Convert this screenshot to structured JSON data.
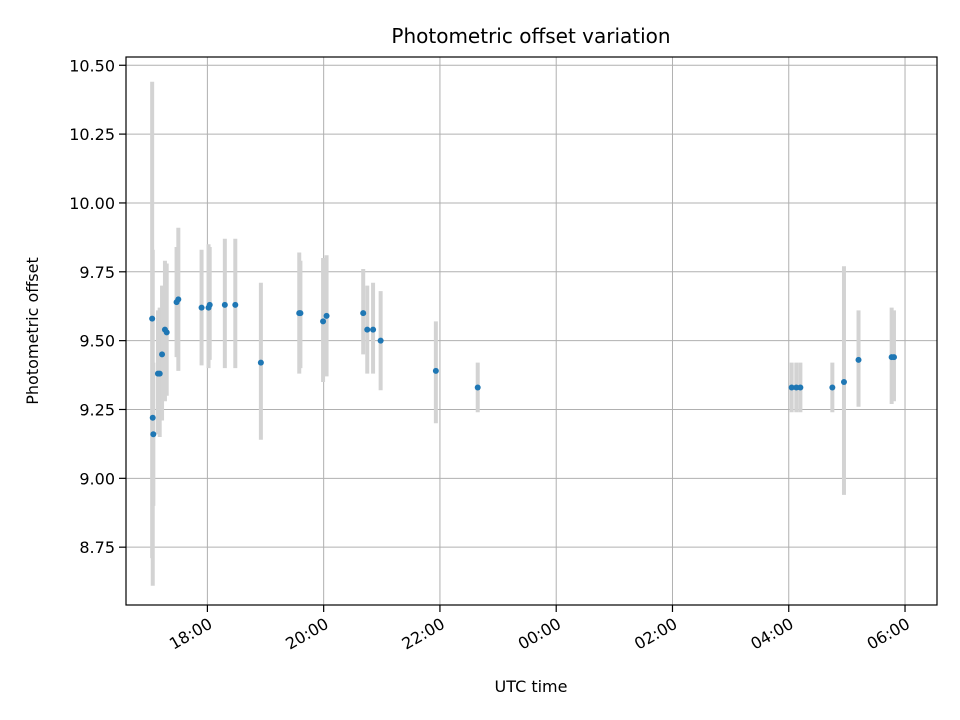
{
  "chart_data": {
    "type": "scatter",
    "title": "Photometric offset variation",
    "xlabel": "UTC time",
    "ylabel": "Photometric offset",
    "grid": true,
    "x_unit": "hours since 00:00 of first day (values > 24 are next day)",
    "xlim": [
      16.6,
      30.55
    ],
    "ylim": [
      8.54,
      10.53
    ],
    "x_ticks": [
      {
        "value": 18,
        "label": "18:00"
      },
      {
        "value": 20,
        "label": "20:00"
      },
      {
        "value": 22,
        "label": "22:00"
      },
      {
        "value": 24,
        "label": "00:00"
      },
      {
        "value": 26,
        "label": "02:00"
      },
      {
        "value": 28,
        "label": "04:00"
      },
      {
        "value": 30,
        "label": "06:00"
      }
    ],
    "y_ticks": [
      {
        "value": 8.75,
        "label": "8.75"
      },
      {
        "value": 9.0,
        "label": "9.00"
      },
      {
        "value": 9.25,
        "label": "9.25"
      },
      {
        "value": 9.5,
        "label": "9.50"
      },
      {
        "value": 9.75,
        "label": "9.75"
      },
      {
        "value": 10.0,
        "label": "10.00"
      },
      {
        "value": 10.25,
        "label": "10.25"
      },
      {
        "value": 10.5,
        "label": "10.50"
      }
    ],
    "marker_color": "#1f77b4",
    "errorbar_color": "#d3d3d3",
    "points": [
      {
        "x": 17.05,
        "y": 9.58,
        "ylo": 8.71,
        "yhi": 10.44
      },
      {
        "x": 17.06,
        "y": 9.22,
        "ylo": 8.61,
        "yhi": 9.83
      },
      {
        "x": 17.07,
        "y": 9.16,
        "ylo": 8.9,
        "yhi": 9.42
      },
      {
        "x": 17.15,
        "y": 9.38,
        "ylo": 9.16,
        "yhi": 9.61
      },
      {
        "x": 17.18,
        "y": 9.38,
        "ylo": 9.15,
        "yhi": 9.62
      },
      {
        "x": 17.22,
        "y": 9.45,
        "ylo": 9.21,
        "yhi": 9.7
      },
      {
        "x": 17.27,
        "y": 9.54,
        "ylo": 9.28,
        "yhi": 9.79
      },
      {
        "x": 17.3,
        "y": 9.53,
        "ylo": 9.3,
        "yhi": 9.78
      },
      {
        "x": 17.47,
        "y": 9.64,
        "ylo": 9.44,
        "yhi": 9.84
      },
      {
        "x": 17.5,
        "y": 9.65,
        "ylo": 9.39,
        "yhi": 9.91
      },
      {
        "x": 17.9,
        "y": 9.62,
        "ylo": 9.41,
        "yhi": 9.83
      },
      {
        "x": 18.02,
        "y": 9.62,
        "ylo": 9.4,
        "yhi": 9.85
      },
      {
        "x": 18.04,
        "y": 9.63,
        "ylo": 9.43,
        "yhi": 9.84
      },
      {
        "x": 18.3,
        "y": 9.63,
        "ylo": 9.4,
        "yhi": 9.87
      },
      {
        "x": 18.48,
        "y": 9.63,
        "ylo": 9.4,
        "yhi": 9.87
      },
      {
        "x": 18.92,
        "y": 9.42,
        "ylo": 9.14,
        "yhi": 9.71
      },
      {
        "x": 19.58,
        "y": 9.6,
        "ylo": 9.38,
        "yhi": 9.82
      },
      {
        "x": 19.6,
        "y": 9.6,
        "ylo": 9.4,
        "yhi": 9.79
      },
      {
        "x": 19.99,
        "y": 9.57,
        "ylo": 9.35,
        "yhi": 9.8
      },
      {
        "x": 20.05,
        "y": 9.59,
        "ylo": 9.37,
        "yhi": 9.81
      },
      {
        "x": 20.68,
        "y": 9.6,
        "ylo": 9.45,
        "yhi": 9.76
      },
      {
        "x": 20.75,
        "y": 9.54,
        "ylo": 9.38,
        "yhi": 9.7
      },
      {
        "x": 20.85,
        "y": 9.54,
        "ylo": 9.38,
        "yhi": 9.71
      },
      {
        "x": 20.98,
        "y": 9.5,
        "ylo": 9.32,
        "yhi": 9.68
      },
      {
        "x": 21.93,
        "y": 9.39,
        "ylo": 9.2,
        "yhi": 9.57
      },
      {
        "x": 22.65,
        "y": 9.33,
        "ylo": 9.24,
        "yhi": 9.42
      },
      {
        "x": 28.05,
        "y": 9.33,
        "ylo": 9.24,
        "yhi": 9.42
      },
      {
        "x": 28.13,
        "y": 9.33,
        "ylo": 9.24,
        "yhi": 9.42
      },
      {
        "x": 28.2,
        "y": 9.33,
        "ylo": 9.24,
        "yhi": 9.42
      },
      {
        "x": 28.75,
        "y": 9.33,
        "ylo": 9.24,
        "yhi": 9.42
      },
      {
        "x": 28.95,
        "y": 9.35,
        "ylo": 8.94,
        "yhi": 9.77
      },
      {
        "x": 29.2,
        "y": 9.43,
        "ylo": 9.26,
        "yhi": 9.61
      },
      {
        "x": 29.77,
        "y": 9.44,
        "ylo": 9.27,
        "yhi": 9.62
      },
      {
        "x": 29.81,
        "y": 9.44,
        "ylo": 9.28,
        "yhi": 9.61
      }
    ]
  }
}
